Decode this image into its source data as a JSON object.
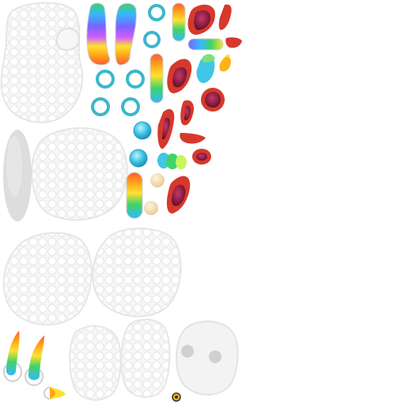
{
  "atlas": {
    "background": "#ffffff",
    "fleece_color": "#f2f2f2",
    "fleece_shadow": "#d9d9d9",
    "ring_color": "#3bb7c9",
    "mouth_red": "#d6392c",
    "mouth_inner": "#8c1f4a",
    "rainbow_colors": [
      "#ff5a36",
      "#ffa21a",
      "#ffe22e",
      "#3fd36a",
      "#35b8ff",
      "#7b63ff",
      "#d15cff"
    ]
  },
  "sprites": {
    "fleece_blobs": 9,
    "rainbow_horns": 4,
    "rainbow_tubes": 4,
    "teal_rings": 6,
    "teal_balls": 2,
    "mouths": 10,
    "beige_dots": 2,
    "flame_bits": 3
  }
}
